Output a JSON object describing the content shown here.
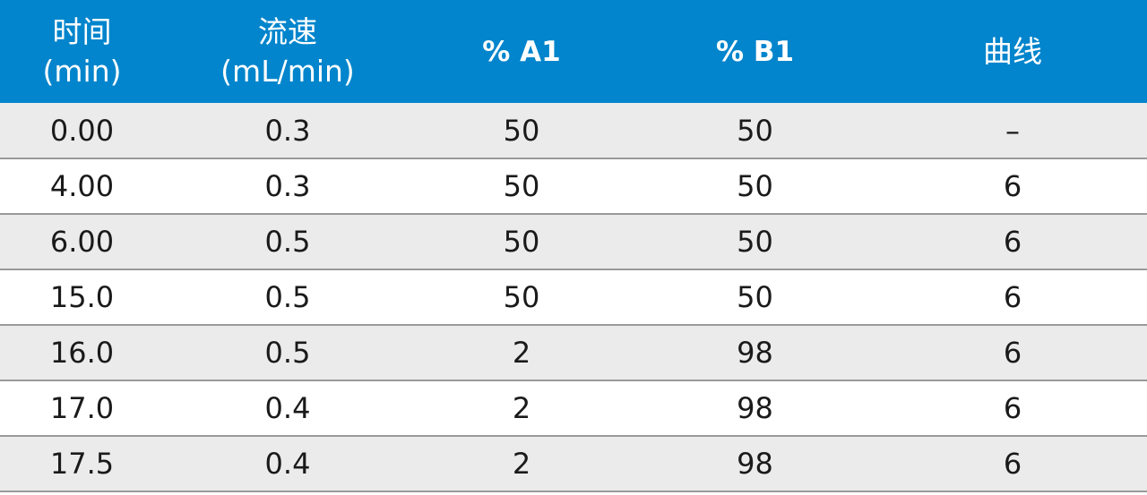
{
  "table": {
    "headers": [
      {
        "line1": "时间",
        "line2": "(min)"
      },
      {
        "line1": "流速",
        "line2": "(mL/min)"
      },
      {
        "line1": "% A1",
        "line2": ""
      },
      {
        "line1": "% B1",
        "line2": ""
      },
      {
        "line1": "曲线",
        "line2": ""
      }
    ],
    "rows": [
      [
        "0.00",
        "0.3",
        "50",
        "50",
        "–"
      ],
      [
        "4.00",
        "0.3",
        "50",
        "50",
        "6"
      ],
      [
        "6.00",
        "0.5",
        "50",
        "50",
        "6"
      ],
      [
        "15.0",
        "0.5",
        "50",
        "50",
        "6"
      ],
      [
        "16.0",
        "0.5",
        "2",
        "98",
        "6"
      ],
      [
        "17.0",
        "0.4",
        "2",
        "98",
        "6"
      ],
      [
        "17.5",
        "0.4",
        "2",
        "98",
        "6"
      ]
    ]
  },
  "colors": {
    "header_background": "#0285cc",
    "header_text": "#ffffff",
    "row_shaded": "#ebebeb",
    "row_plain": "#ffffff",
    "divider": "#9a9a9a"
  }
}
